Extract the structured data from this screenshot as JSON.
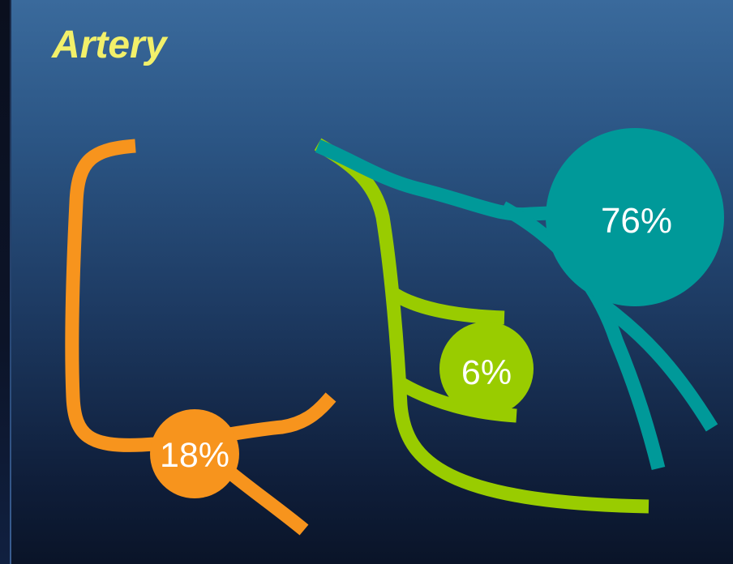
{
  "title": "Artery",
  "colors": {
    "orange": "#f7941d",
    "green": "#99cc00",
    "teal": "#009999",
    "title": "#f2f06a"
  },
  "branches": [
    {
      "id": "orange",
      "label": "18%"
    },
    {
      "id": "green",
      "label": "6%"
    },
    {
      "id": "teal",
      "label": "76%"
    }
  ]
}
